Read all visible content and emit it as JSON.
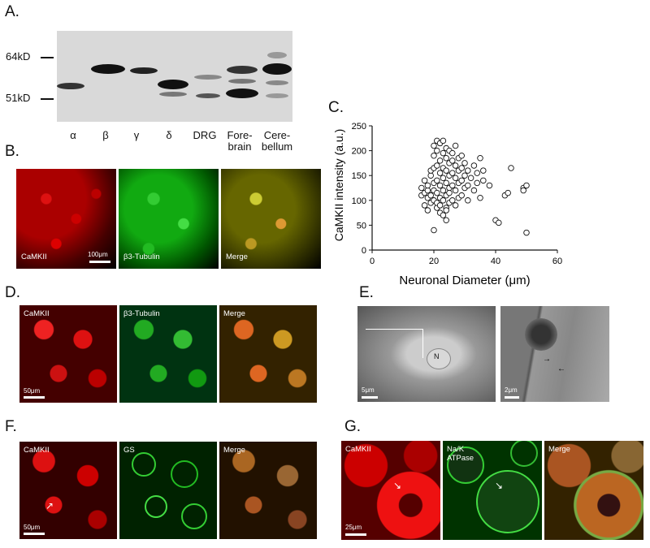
{
  "figure": {
    "panels": {
      "a": {
        "label": "A.",
        "mw_top": "64kD",
        "mw_bottom": "51kD",
        "lanes": [
          {
            "name": "α"
          },
          {
            "name": "β"
          },
          {
            "name": "γ"
          },
          {
            "name": "δ"
          },
          {
            "name": "DRG"
          },
          {
            "name_line1": "Fore-",
            "name_line2": "brain"
          },
          {
            "name_line1": "Cere-",
            "name_line2": "bellum"
          }
        ]
      },
      "b": {
        "label": "B.",
        "img1": "CaMKII",
        "img2": "β3-Tubulin",
        "img3": "Merge",
        "scale": "100μm"
      },
      "c": {
        "label": "C."
      },
      "d": {
        "label": "D.",
        "img1": "CaMKII",
        "img2": "β3-Tubulin",
        "img3": "Merge",
        "scale": "50μm"
      },
      "e": {
        "label": "E.",
        "nucleus": "N",
        "scale1": "5μm",
        "scale2": "2μm"
      },
      "f": {
        "label": "F.",
        "img1": "CaMKII",
        "img2": "GS",
        "img3": "Merge",
        "scale": "50μm"
      },
      "g": {
        "label": "G.",
        "img1": "CaMKII",
        "img2_line1": "Na/K",
        "img2_line2": "ATPase",
        "img3": "Merge",
        "scale": "25μm"
      }
    }
  },
  "chart_data": {
    "type": "scatter",
    "xlabel": "Neuronal Diameter (μm)",
    "ylabel": "CaMKII intensity (a.u.)",
    "xlim": [
      0,
      60
    ],
    "ylim": [
      0,
      250
    ],
    "xticks": [
      0,
      20,
      40,
      60
    ],
    "yticks": [
      0,
      50,
      100,
      150,
      200,
      250
    ],
    "points": [
      [
        16,
        110
      ],
      [
        16,
        125
      ],
      [
        17,
        115
      ],
      [
        17,
        140
      ],
      [
        17,
        90
      ],
      [
        18,
        105
      ],
      [
        18,
        120
      ],
      [
        18,
        130
      ],
      [
        18,
        80
      ],
      [
        19,
        150
      ],
      [
        19,
        95
      ],
      [
        19,
        110
      ],
      [
        19,
        160
      ],
      [
        20,
        40
      ],
      [
        20,
        100
      ],
      [
        20,
        120
      ],
      [
        20,
        135
      ],
      [
        20,
        165
      ],
      [
        20,
        190
      ],
      [
        20,
        210
      ],
      [
        21,
        85
      ],
      [
        21,
        115
      ],
      [
        21,
        140
      ],
      [
        21,
        170
      ],
      [
        21,
        200
      ],
      [
        21,
        220
      ],
      [
        21,
        95
      ],
      [
        22,
        75
      ],
      [
        22,
        105
      ],
      [
        22,
        130
      ],
      [
        22,
        155
      ],
      [
        22,
        180
      ],
      [
        22,
        215
      ],
      [
        22,
        90
      ],
      [
        23,
        70
      ],
      [
        23,
        100
      ],
      [
        23,
        120
      ],
      [
        23,
        145
      ],
      [
        23,
        165
      ],
      [
        23,
        195
      ],
      [
        23,
        220
      ],
      [
        24,
        60
      ],
      [
        24,
        85
      ],
      [
        24,
        110
      ],
      [
        24,
        135
      ],
      [
        24,
        160
      ],
      [
        24,
        185
      ],
      [
        24,
        205
      ],
      [
        24,
        80
      ],
      [
        25,
        95
      ],
      [
        25,
        125
      ],
      [
        25,
        150
      ],
      [
        25,
        175
      ],
      [
        25,
        200
      ],
      [
        25,
        115
      ],
      [
        26,
        100
      ],
      [
        26,
        130
      ],
      [
        26,
        155
      ],
      [
        26,
        180
      ],
      [
        26,
        195
      ],
      [
        27,
        90
      ],
      [
        27,
        120
      ],
      [
        27,
        145
      ],
      [
        27,
        170
      ],
      [
        27,
        210
      ],
      [
        28,
        105
      ],
      [
        28,
        135
      ],
      [
        28,
        160
      ],
      [
        28,
        185
      ],
      [
        29,
        110
      ],
      [
        29,
        140
      ],
      [
        29,
        165
      ],
      [
        29,
        190
      ],
      [
        30,
        125
      ],
      [
        30,
        150
      ],
      [
        30,
        175
      ],
      [
        31,
        100
      ],
      [
        31,
        130
      ],
      [
        31,
        160
      ],
      [
        32,
        145
      ],
      [
        33,
        120
      ],
      [
        33,
        170
      ],
      [
        34,
        135
      ],
      [
        34,
        155
      ],
      [
        35,
        185
      ],
      [
        35,
        105
      ],
      [
        36,
        140
      ],
      [
        36,
        160
      ],
      [
        38,
        130
      ],
      [
        40,
        60
      ],
      [
        41,
        55
      ],
      [
        43,
        110
      ],
      [
        44,
        115
      ],
      [
        45,
        165
      ],
      [
        49,
        125
      ],
      [
        49,
        120
      ],
      [
        50,
        130
      ],
      [
        50,
        35
      ]
    ]
  }
}
